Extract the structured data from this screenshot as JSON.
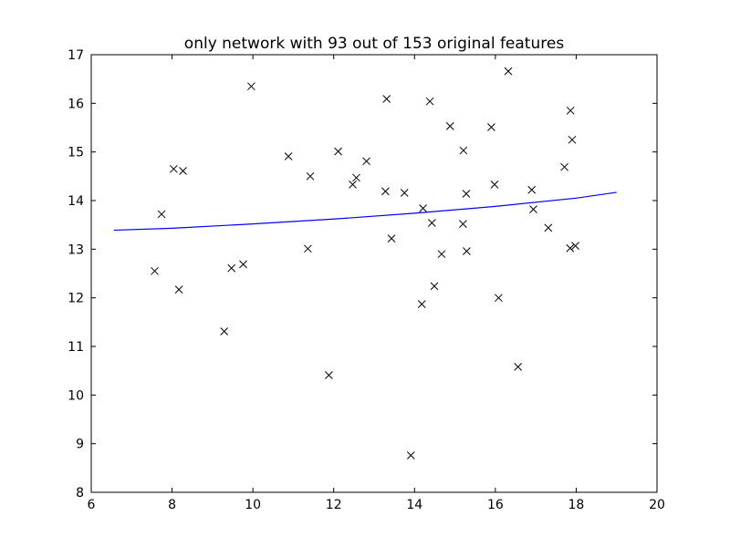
{
  "chart_data": {
    "type": "scatter",
    "title": "only network with 93 out of 153 original features",
    "xlabel": "",
    "ylabel": "",
    "xlim": [
      6,
      20
    ],
    "ylim": [
      8,
      17
    ],
    "x_ticks": [
      6,
      8,
      10,
      12,
      14,
      16,
      18,
      20
    ],
    "y_ticks": [
      8,
      9,
      10,
      11,
      12,
      13,
      14,
      15,
      16,
      17
    ],
    "grid": false,
    "colors": {
      "points": "#000000",
      "fit_line": "#0000ff",
      "axes": "#000000"
    },
    "series": [
      {
        "kind": "points",
        "marker": "x",
        "points": [
          [
            7.57,
            12.55
          ],
          [
            7.74,
            13.72
          ],
          [
            8.04,
            14.65
          ],
          [
            8.17,
            12.17
          ],
          [
            8.27,
            14.61
          ],
          [
            9.29,
            11.31
          ],
          [
            9.47,
            12.61
          ],
          [
            9.76,
            12.69
          ],
          [
            9.96,
            16.35
          ],
          [
            10.88,
            14.91
          ],
          [
            11.36,
            13.01
          ],
          [
            11.42,
            14.5
          ],
          [
            11.88,
            10.41
          ],
          [
            12.11,
            15.01
          ],
          [
            12.47,
            14.33
          ],
          [
            12.56,
            14.47
          ],
          [
            12.81,
            14.81
          ],
          [
            13.28,
            14.19
          ],
          [
            13.31,
            16.09
          ],
          [
            13.43,
            13.22
          ],
          [
            13.75,
            14.16
          ],
          [
            13.91,
            8.76
          ],
          [
            14.18,
            11.87
          ],
          [
            14.21,
            13.84
          ],
          [
            14.38,
            16.04
          ],
          [
            14.43,
            13.54
          ],
          [
            14.49,
            12.24
          ],
          [
            14.67,
            12.9
          ],
          [
            14.88,
            15.53
          ],
          [
            15.2,
            13.52
          ],
          [
            15.21,
            15.03
          ],
          [
            15.28,
            14.14
          ],
          [
            15.29,
            12.96
          ],
          [
            15.9,
            15.51
          ],
          [
            15.98,
            14.33
          ],
          [
            16.08,
            12.0
          ],
          [
            16.32,
            16.66
          ],
          [
            16.56,
            10.58
          ],
          [
            16.9,
            14.22
          ],
          [
            16.94,
            13.82
          ],
          [
            17.31,
            13.44
          ],
          [
            17.71,
            14.69
          ],
          [
            17.85,
            13.02
          ],
          [
            17.86,
            15.85
          ],
          [
            17.9,
            15.25
          ],
          [
            17.98,
            13.07
          ]
        ]
      },
      {
        "kind": "line",
        "points": [
          [
            6.56,
            13.39
          ],
          [
            8.0,
            13.43
          ],
          [
            10.0,
            13.52
          ],
          [
            12.0,
            13.62
          ],
          [
            14.0,
            13.74
          ],
          [
            16.0,
            13.88
          ],
          [
            18.0,
            14.05
          ],
          [
            19.0,
            14.17
          ]
        ]
      }
    ]
  }
}
